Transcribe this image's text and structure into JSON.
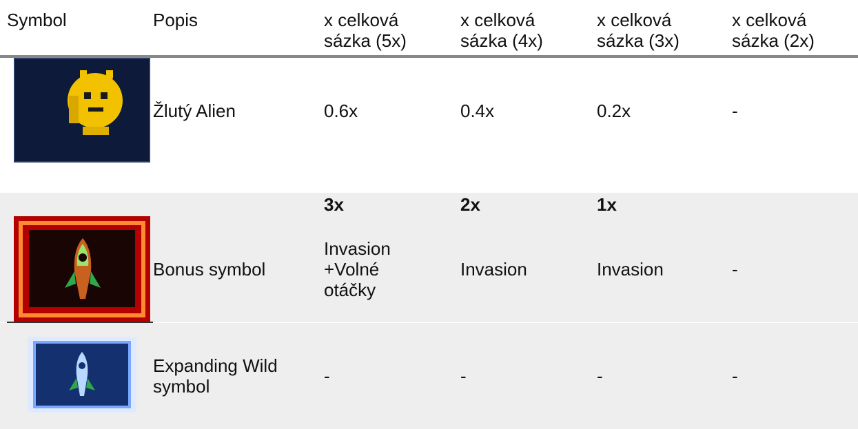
{
  "table": {
    "header": [
      "Symbol",
      "Popis",
      "x celková sázka (5x)",
      "x celková sázka (4x)",
      "x celková sázka (3x)",
      "x celková sázka (2x)"
    ],
    "rows": [
      {
        "name": "Žlutý Alien",
        "cells": [
          "0.6x",
          "0.4x",
          "0.2x",
          "-"
        ]
      }
    ],
    "subheader": [
      "3x",
      "2x",
      "1x"
    ],
    "bonus_rows": [
      {
        "name": "Bonus symbol",
        "cells": [
          "Invasion +Volné otáčky",
          "Invasion",
          "Invasion",
          "-"
        ]
      },
      {
        "name": "Expanding Wild symbol",
        "cells": [
          "-",
          "-",
          "-",
          "-"
        ]
      }
    ]
  }
}
